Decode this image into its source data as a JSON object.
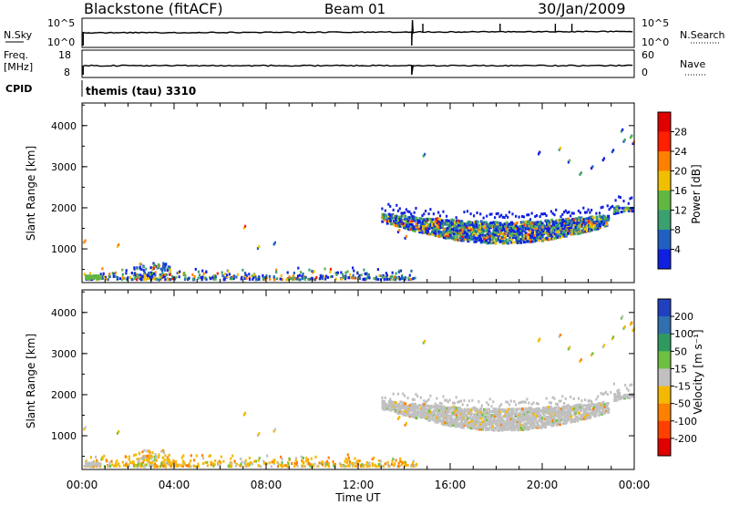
{
  "header": {
    "station": "Blackstone (fitACF)",
    "beam": "Beam 01",
    "date": "30/Jan/2009"
  },
  "params": {
    "nsky_label": "N.Sky",
    "nsky_ticks": [
      "10^5",
      "10^0"
    ],
    "nsearch_label": "N.Search",
    "nsearch_ticks": [
      "10^5",
      "10^0"
    ],
    "freq_label": "Freq.",
    "freq_unit": "[MHz]",
    "freq_ticks": [
      "18",
      "8"
    ],
    "nave_label": "Nave",
    "nave_ticks": [
      "60",
      "0"
    ],
    "cpid_label": "CPID",
    "cpid_value": "themis (tau) 3310"
  },
  "chart_data": [
    {
      "type": "heatmap",
      "name": "power",
      "ylabel": "Slant Range [km]",
      "y_ticks": [
        "1000",
        "2000",
        "3000",
        "4000"
      ],
      "ylim": [
        180,
        4550
      ],
      "xlim": [
        0,
        24
      ],
      "colorbar_label": "Power [dB]",
      "colorbar_ticks": [
        "4",
        "8",
        "12",
        "16",
        "20",
        "24",
        "28"
      ],
      "colors": [
        "#1020e0",
        "#2060c0",
        "#3aa070",
        "#60b840",
        "#f0c000",
        "#ff8000",
        "#ff2000",
        "#e00000"
      ]
    },
    {
      "type": "heatmap",
      "name": "velocity",
      "ylabel": "Slant Range [km]",
      "y_ticks": [
        "1000",
        "2000",
        "3000",
        "4000"
      ],
      "ylim": [
        180,
        4550
      ],
      "xlim": [
        0,
        24
      ],
      "xlabel": "Time UT",
      "x_ticks": [
        "00:00",
        "04:00",
        "08:00",
        "12:00",
        "16:00",
        "20:00",
        "00:00"
      ],
      "colorbar_label": "Velocity [m s⁻¹]",
      "colorbar_ticks": [
        "200",
        "100",
        "50",
        "15",
        "-15",
        "-50",
        "-100",
        "-200"
      ],
      "colors": [
        "#2040c0",
        "#3070b0",
        "#2f9a60",
        "#6ec040",
        "#c0c0c0",
        "#f5b800",
        "#ff8000",
        "#ff4000",
        "#e00000"
      ]
    }
  ]
}
